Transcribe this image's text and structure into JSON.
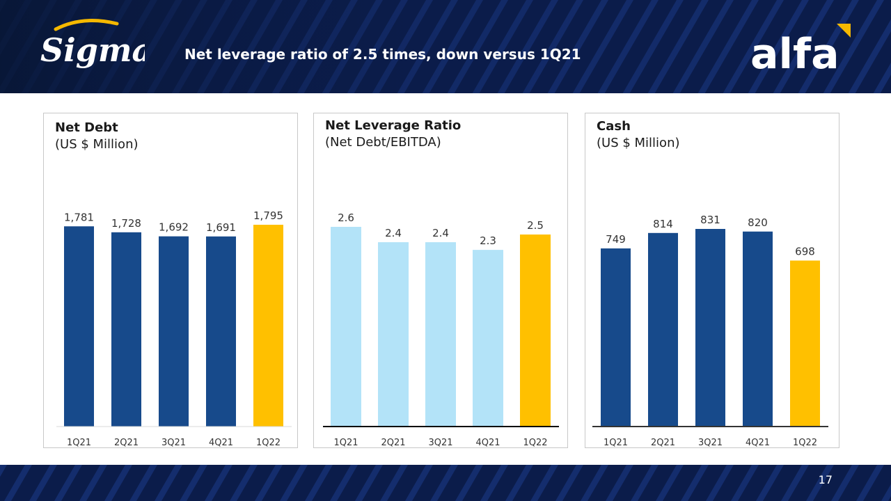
{
  "header": {
    "title": "Net leverage ratio of 2.5 times, down versus 1Q21",
    "logo_left": "Sigma",
    "logo_right": "alfa"
  },
  "footer": {
    "page_number": "17"
  },
  "colors": {
    "navy": "#174a8b",
    "light_blue": "#b3e3f8",
    "highlight": "#ffc000",
    "header_bg": "#0b1c4a",
    "stripe": "#1b3b8a"
  },
  "chart_data": [
    {
      "type": "bar",
      "title": "Net Debt",
      "subtitle": "(US $ Million)",
      "categories": [
        "1Q21",
        "2Q21",
        "3Q21",
        "4Q21",
        "1Q22"
      ],
      "values": [
        1781,
        1728,
        1692,
        1691,
        1795
      ],
      "labels": [
        "1,781",
        "1,728",
        "1,692",
        "1,691",
        "1,795"
      ],
      "bar_colors": [
        "#174a8b",
        "#174a8b",
        "#174a8b",
        "#174a8b",
        "#ffc000"
      ],
      "ylim": [
        0,
        1900
      ],
      "grid": false,
      "baseline_color": "#d9d9d9"
    },
    {
      "type": "bar",
      "title": "Net Leverage Ratio",
      "subtitle": "(Net Debt/EBITDA)",
      "categories": [
        "1Q21",
        "2Q21",
        "3Q21",
        "4Q21",
        "1Q22"
      ],
      "values": [
        2.6,
        2.4,
        2.4,
        2.3,
        2.5
      ],
      "labels": [
        "2.6",
        "2.4",
        "2.4",
        "2.3",
        "2.5"
      ],
      "bar_colors": [
        "#b3e3f8",
        "#b3e3f8",
        "#b3e3f8",
        "#b3e3f8",
        "#ffc000"
      ],
      "ylim": [
        0,
        2.8
      ],
      "grid": false,
      "baseline_color": "#000000"
    },
    {
      "type": "bar",
      "title": "Cash",
      "subtitle": "(US $ Million)",
      "categories": [
        "1Q21",
        "2Q21",
        "3Q21",
        "4Q21",
        "1Q22"
      ],
      "values": [
        749,
        814,
        831,
        820,
        698
      ],
      "labels": [
        "749",
        "814",
        "831",
        "820",
        "698"
      ],
      "bar_colors": [
        "#174a8b",
        "#174a8b",
        "#174a8b",
        "#174a8b",
        "#ffc000"
      ],
      "ylim": [
        0,
        1000
      ],
      "grid": false,
      "baseline_color": "#333333"
    }
  ]
}
